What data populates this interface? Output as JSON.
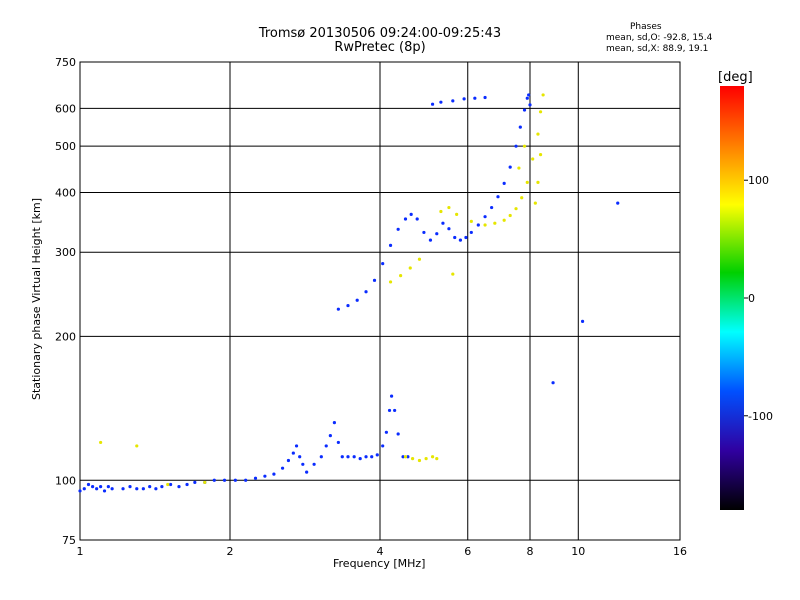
{
  "chart_data": {
    "type": "scatter",
    "title": "Tromsø 20130506 09:24:00-09:25:43",
    "subtitle": "RwPretec (8p)",
    "xlabel": "Frequency [MHz]",
    "ylabel": "Stationary phase Virtual Height [km]",
    "xscale": "log",
    "yscale": "log",
    "xlim": [
      1,
      16
    ],
    "ylim": [
      75,
      750
    ],
    "x_ticks": [
      {
        "value": 1,
        "label": "1"
      },
      {
        "value": 2,
        "label": "2"
      },
      {
        "value": 4,
        "label": "4"
      },
      {
        "value": 6,
        "label": "6"
      },
      {
        "value": 8,
        "label": "8"
      },
      {
        "value": 10,
        "label": "10"
      },
      {
        "value": 16,
        "label": "16"
      }
    ],
    "y_ticks": [
      {
        "value": 75,
        "label": "75"
      },
      {
        "value": 100,
        "label": "100"
      },
      {
        "value": 200,
        "label": "200"
      },
      {
        "value": 300,
        "label": "300"
      },
      {
        "value": 400,
        "label": "400"
      },
      {
        "value": 500,
        "label": "500"
      },
      {
        "value": 600,
        "label": "600"
      },
      {
        "value": 750,
        "label": "750"
      }
    ],
    "grid": true,
    "phase_stats": {
      "title": "Phases",
      "o_mode": "mean, sd,O: -92.8, 15.4",
      "x_mode": "mean, sd,X:  88.9, 19.1"
    },
    "colorbar": {
      "unit": "[deg]",
      "range": [
        -180,
        180
      ],
      "ticks": [
        {
          "value": 100,
          "label": "100"
        },
        {
          "value": 0,
          "label": "0"
        },
        {
          "value": -100,
          "label": "-100"
        }
      ]
    },
    "series": [
      {
        "points": [
          [
            1.0,
            95
          ],
          [
            1.02,
            96
          ],
          [
            1.04,
            98
          ],
          [
            1.06,
            97
          ],
          [
            1.08,
            96
          ],
          [
            1.1,
            97
          ],
          [
            1.12,
            95
          ],
          [
            1.14,
            97
          ],
          [
            1.16,
            96
          ],
          [
            1.22,
            96
          ],
          [
            1.26,
            97
          ],
          [
            1.3,
            96
          ],
          [
            1.34,
            96
          ],
          [
            1.38,
            97
          ],
          [
            1.42,
            96
          ],
          [
            1.46,
            97
          ],
          [
            1.52,
            98
          ],
          [
            1.58,
            97
          ],
          [
            1.64,
            98
          ],
          [
            1.7,
            99
          ],
          [
            1.78,
            99
          ],
          [
            1.86,
            100
          ],
          [
            1.95,
            100
          ],
          [
            2.05,
            100
          ],
          [
            2.15,
            100
          ],
          [
            2.25,
            101
          ],
          [
            2.35,
            102
          ],
          [
            2.45,
            103
          ],
          [
            2.55,
            106
          ],
          [
            2.62,
            110
          ],
          [
            2.68,
            114
          ],
          [
            2.72,
            118
          ],
          [
            2.76,
            112
          ],
          [
            2.8,
            108
          ],
          [
            2.85,
            104
          ],
          [
            2.95,
            108
          ],
          [
            3.05,
            112
          ],
          [
            3.12,
            118
          ],
          [
            3.18,
            124
          ],
          [
            3.24,
            132
          ],
          [
            3.3,
            120
          ],
          [
            3.36,
            112
          ],
          [
            3.45,
            112
          ],
          [
            3.55,
            112
          ],
          [
            3.65,
            111
          ],
          [
            3.75,
            112
          ],
          [
            3.85,
            112
          ],
          [
            3.95,
            113
          ],
          [
            4.05,
            118
          ],
          [
            4.12,
            126
          ],
          [
            4.18,
            140
          ],
          [
            4.22,
            150
          ],
          [
            4.28,
            140
          ],
          [
            4.35,
            125
          ],
          [
            4.45,
            112
          ],
          [
            4.55,
            112
          ],
          [
            3.3,
            228
          ],
          [
            3.45,
            232
          ],
          [
            3.6,
            238
          ],
          [
            3.75,
            248
          ],
          [
            3.9,
            262
          ],
          [
            4.05,
            284
          ],
          [
            4.2,
            310
          ],
          [
            4.35,
            335
          ],
          [
            4.5,
            352
          ],
          [
            4.62,
            360
          ],
          [
            4.75,
            352
          ],
          [
            4.9,
            330
          ],
          [
            5.05,
            318
          ],
          [
            5.2,
            328
          ],
          [
            5.35,
            345
          ],
          [
            5.5,
            336
          ],
          [
            5.65,
            322
          ],
          [
            5.8,
            318
          ],
          [
            5.95,
            322
          ],
          [
            6.1,
            330
          ],
          [
            6.3,
            342
          ],
          [
            6.5,
            356
          ],
          [
            6.7,
            372
          ],
          [
            6.9,
            392
          ],
          [
            7.1,
            418
          ],
          [
            7.3,
            452
          ],
          [
            7.5,
            500
          ],
          [
            7.65,
            548
          ],
          [
            7.8,
            595
          ],
          [
            7.9,
            630
          ],
          [
            7.95,
            640
          ],
          [
            8.0,
            610
          ],
          [
            5.1,
            612
          ],
          [
            5.3,
            618
          ],
          [
            5.6,
            622
          ],
          [
            5.9,
            628
          ],
          [
            6.2,
            630
          ],
          [
            6.5,
            632
          ],
          [
            12.0,
            380
          ],
          [
            10.2,
            215
          ],
          [
            8.9,
            160
          ]
        ]
      },
      {
        "points": [
          [
            4.5,
            112
          ],
          [
            4.65,
            111
          ],
          [
            4.8,
            110
          ],
          [
            4.95,
            111
          ],
          [
            5.1,
            112
          ],
          [
            5.2,
            111
          ],
          [
            4.2,
            260
          ],
          [
            4.4,
            268
          ],
          [
            4.6,
            278
          ],
          [
            4.8,
            290
          ],
          [
            5.3,
            365
          ],
          [
            5.5,
            372
          ],
          [
            5.7,
            360
          ],
          [
            6.1,
            348
          ],
          [
            6.5,
            342
          ],
          [
            6.8,
            345
          ],
          [
            7.1,
            350
          ],
          [
            7.3,
            358
          ],
          [
            7.5,
            370
          ],
          [
            7.7,
            390
          ],
          [
            7.9,
            420
          ],
          [
            8.1,
            470
          ],
          [
            8.3,
            530
          ],
          [
            8.4,
            590
          ],
          [
            8.5,
            640
          ],
          [
            8.2,
            380
          ],
          [
            8.3,
            420
          ],
          [
            8.4,
            480
          ],
          [
            7.6,
            450
          ],
          [
            7.8,
            500
          ],
          [
            1.1,
            120
          ],
          [
            1.3,
            118
          ],
          [
            1.5,
            98
          ],
          [
            1.78,
            99
          ],
          [
            5.6,
            270
          ]
        ]
      }
    ]
  }
}
